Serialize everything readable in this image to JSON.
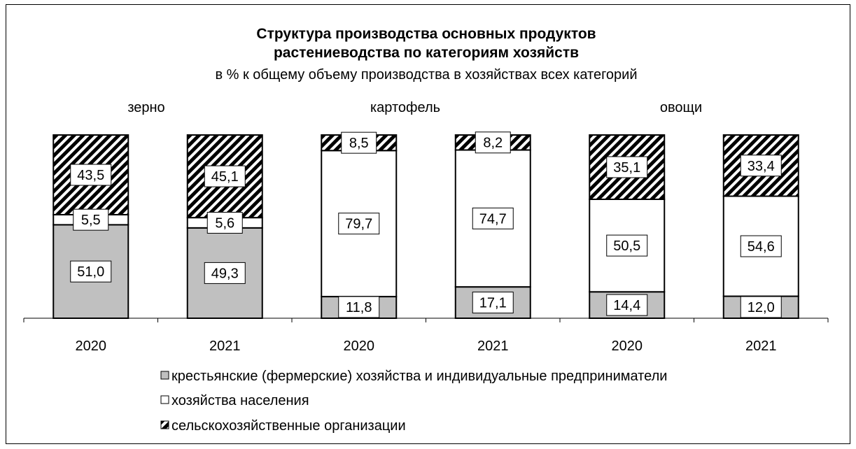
{
  "chart_data": {
    "type": "bar",
    "stacked": true,
    "percent": true,
    "title": "Структура производства основных продуктов растениеводства по категориям хозяйств",
    "title_lines": [
      "Структура производства основных продуктов",
      "растениеводства по категориям хозяйств"
    ],
    "subtitle": "в % к общему объему производства в хозяйствах всех категорий",
    "groups": [
      "зерно",
      "картофель",
      "овощи"
    ],
    "categories": [
      "2020",
      "2021",
      "2020",
      "2021",
      "2020",
      "2021"
    ],
    "category_group": [
      0,
      0,
      1,
      1,
      2,
      2
    ],
    "ylim": [
      0,
      100
    ],
    "grid": false,
    "legend_position": "bottom",
    "series": [
      {
        "name": "крестьянские (фермерские) хозяйства и индивидуальные предприниматели",
        "values": [
          51.0,
          49.3,
          11.8,
          17.1,
          14.4,
          12.0
        ],
        "labels": [
          "51,0",
          "49,3",
          "11,8",
          "17,1",
          "14,4",
          "12,0"
        ],
        "color": "#c0c0c0",
        "pattern": "solid"
      },
      {
        "name": "хозяйства населения",
        "values": [
          5.5,
          5.6,
          79.7,
          74.7,
          50.5,
          54.6
        ],
        "labels": [
          "5,5",
          "5,6",
          "79,7",
          "74,7",
          "50,5",
          "54,6"
        ],
        "color": "#ffffff",
        "pattern": "solid"
      },
      {
        "name": "сельскохозяйственные организации",
        "values": [
          43.5,
          45.1,
          8.5,
          8.2,
          35.1,
          33.4
        ],
        "labels": [
          "43,5",
          "45,1",
          "8,5",
          "8,2",
          "35,1",
          "33,4"
        ],
        "color": "#000000",
        "pattern": "diagonal-hatch"
      }
    ]
  }
}
